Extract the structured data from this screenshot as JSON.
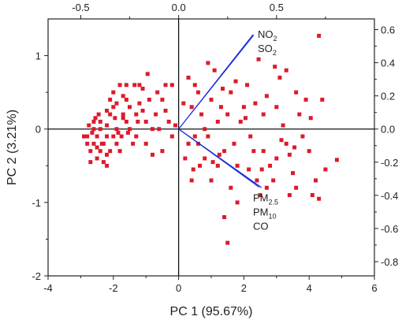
{
  "chart_data": {
    "type": "scatter",
    "title": "",
    "xlabel": "PC 1 (95.67%)",
    "ylabel": "PC 2 (3.21%)",
    "xlim": [
      -4,
      6
    ],
    "ylim": [
      -2,
      1.5
    ],
    "x_ticks": [
      -4,
      -2,
      0,
      2,
      4,
      6
    ],
    "y_ticks": [
      -2,
      -1,
      0,
      1
    ],
    "top_axis": {
      "lim": [
        -0.667,
        1.0
      ],
      "ticks": [
        -0.5,
        0.0,
        0.5
      ]
    },
    "right_axis": {
      "lim": [
        -0.8857,
        0.6643
      ],
      "ticks": [
        -0.8,
        -0.6,
        -0.4,
        -0.2,
        0.0,
        0.2,
        0.4,
        0.6
      ]
    },
    "grid": false,
    "zero_lines": true,
    "colors": {
      "points": "#dd1a2a",
      "loadings": "#1a2bd8",
      "axes": "#222222"
    },
    "loadings": [
      {
        "label": "NO",
        "sub": "2",
        "x": 0.38,
        "y": 0.57
      },
      {
        "label": "SO",
        "sub": "2",
        "x": 0.38,
        "y": 0.57
      },
      {
        "label": "PM",
        "sub": "2.5",
        "x": 0.42,
        "y": -0.35
      },
      {
        "label": "PM",
        "sub": "10",
        "x": 0.42,
        "y": -0.35
      },
      {
        "label": "CO",
        "sub": "",
        "x": 0.41,
        "y": -0.35
      }
    ],
    "points": [
      [
        -2.9,
        -0.1
      ],
      [
        -2.7,
        -0.3
      ],
      [
        -2.8,
        -0.1
      ],
      [
        -2.6,
        0.0
      ],
      [
        -2.7,
        -0.45
      ],
      [
        -2.5,
        -0.4
      ],
      [
        -2.6,
        -0.2
      ],
      [
        -2.5,
        -0.1
      ],
      [
        -2.4,
        0.1
      ],
      [
        -2.6,
        0.1
      ],
      [
        -2.4,
        -0.3
      ],
      [
        -2.3,
        -0.45
      ],
      [
        -2.2,
        -0.5
      ],
      [
        -2.3,
        -0.2
      ],
      [
        -2.2,
        -0.1
      ],
      [
        -2.4,
        0.0
      ],
      [
        -2.5,
        -0.25
      ],
      [
        -2.8,
        -0.2
      ],
      [
        -2.75,
        0.05
      ],
      [
        -2.2,
        0.05
      ],
      [
        -2.1,
        -0.3
      ],
      [
        -2.0,
        -0.1
      ],
      [
        -1.9,
        -0.2
      ],
      [
        -2.1,
        0.2
      ],
      [
        -2.0,
        0.3
      ],
      [
        -1.9,
        0.0
      ],
      [
        -1.8,
        -0.3
      ],
      [
        -2.2,
        -0.35
      ],
      [
        -2.35,
        -0.2
      ],
      [
        -2.45,
        0.2
      ],
      [
        -2.0,
        0.5
      ],
      [
        -1.8,
        0.6
      ],
      [
        -1.7,
        0.45
      ],
      [
        -1.6,
        0.4
      ],
      [
        -1.9,
        0.35
      ],
      [
        -2.1,
        0.4
      ],
      [
        -1.7,
        0.2
      ],
      [
        -1.6,
        0.1
      ],
      [
        -1.75,
        -0.1
      ],
      [
        -1.5,
        0.0
      ],
      [
        -1.4,
        -0.2
      ],
      [
        -1.5,
        0.3
      ],
      [
        -1.3,
        0.2
      ],
      [
        -1.6,
        0.6
      ],
      [
        -1.7,
        0.15
      ],
      [
        -2.2,
        0.25
      ],
      [
        -2.55,
        0.15
      ],
      [
        -2.65,
        -0.05
      ],
      [
        -1.85,
        -0.05
      ],
      [
        -1.95,
        0.15
      ],
      [
        -1.2,
        0.6
      ],
      [
        -1.1,
        0.55
      ],
      [
        -1.2,
        0.35
      ],
      [
        -1.0,
        0.1
      ],
      [
        -1.3,
        -0.1
      ],
      [
        -0.8,
        0.0
      ],
      [
        -1.0,
        -0.2
      ],
      [
        -0.9,
        0.4
      ],
      [
        -0.7,
        0.2
      ],
      [
        -0.5,
        0.4
      ],
      [
        -0.5,
        -0.3
      ],
      [
        -0.6,
        0.0
      ],
      [
        -0.4,
        0.25
      ],
      [
        -0.3,
        0.1
      ],
      [
        -0.2,
        -0.1
      ],
      [
        -0.1,
        0.05
      ],
      [
        -0.8,
        -0.35
      ],
      [
        -1.1,
        0.25
      ],
      [
        -0.4,
        0.6
      ],
      [
        -1.35,
        0.6
      ],
      [
        -1.55,
        -0.05
      ],
      [
        -0.95,
        0.75
      ],
      [
        -0.2,
        0.6
      ],
      [
        -1.25,
        0.1
      ],
      [
        -0.65,
        0.5
      ],
      [
        0.3,
        0.7
      ],
      [
        0.5,
        0.6
      ],
      [
        0.4,
        0.3
      ],
      [
        0.6,
        0.5
      ],
      [
        0.7,
        0.2
      ],
      [
        0.8,
        0.0
      ],
      [
        0.5,
        -0.1
      ],
      [
        0.3,
        -0.2
      ],
      [
        0.2,
        -0.4
      ],
      [
        0.4,
        -0.7
      ],
      [
        0.6,
        -0.2
      ],
      [
        0.9,
        -0.1
      ],
      [
        1.0,
        0.4
      ],
      [
        1.1,
        0.8
      ],
      [
        1.2,
        0.1
      ],
      [
        1.3,
        0.3
      ],
      [
        1.4,
        -0.3
      ],
      [
        1.2,
        -0.5
      ],
      [
        1.0,
        -0.7
      ],
      [
        0.8,
        -0.4
      ],
      [
        1.5,
        0.2
      ],
      [
        1.6,
        0.5
      ],
      [
        1.7,
        -0.2
      ],
      [
        1.8,
        -0.5
      ],
      [
        1.6,
        -0.8
      ],
      [
        1.4,
        -1.2
      ],
      [
        1.5,
        -1.55
      ],
      [
        1.9,
        0.1
      ],
      [
        2.0,
        0.3
      ],
      [
        2.1,
        0.6
      ],
      [
        2.2,
        -0.1
      ],
      [
        2.3,
        -0.3
      ],
      [
        2.4,
        -0.7
      ],
      [
        2.5,
        -0.9
      ],
      [
        2.6,
        0.2
      ],
      [
        2.7,
        0.45
      ],
      [
        2.8,
        -0.5
      ],
      [
        2.9,
        -0.7
      ],
      [
        2.7,
        -0.8
      ],
      [
        2.6,
        -0.3
      ],
      [
        3.0,
        0.3
      ],
      [
        3.1,
        0.7
      ],
      [
        3.2,
        0.05
      ],
      [
        3.3,
        -0.2
      ],
      [
        3.4,
        -0.35
      ],
      [
        3.5,
        -0.6
      ],
      [
        3.6,
        -0.8
      ],
      [
        3.3,
        0.8
      ],
      [
        3.0,
        -0.4
      ],
      [
        3.7,
        0.2
      ],
      [
        3.8,
        -0.1
      ],
      [
        3.9,
        0.4
      ],
      [
        4.0,
        -0.3
      ],
      [
        4.1,
        -0.9
      ],
      [
        4.3,
        1.27
      ],
      [
        4.4,
        0.4
      ],
      [
        4.2,
        -0.7
      ],
      [
        4.3,
        -0.95
      ],
      [
        4.5,
        -0.55
      ],
      [
        4.85,
        -0.42
      ],
      [
        3.4,
        -0.9
      ],
      [
        1.8,
        -1.0
      ],
      [
        2.05,
        0.15
      ],
      [
        2.15,
        -0.55
      ],
      [
        3.6,
        0.5
      ],
      [
        0.9,
        0.9
      ],
      [
        2.95,
        0.85
      ],
      [
        1.25,
        -0.35
      ],
      [
        2.35,
        0.35
      ],
      [
        3.15,
        -0.15
      ],
      [
        0.15,
        0.35
      ],
      [
        0.45,
        -0.55
      ],
      [
        1.05,
        -0.45
      ],
      [
        1.35,
        0.55
      ],
      [
        2.55,
        -0.55
      ],
      [
        3.55,
        -0.25
      ],
      [
        4.05,
        0.15
      ],
      [
        2.45,
        0.95
      ],
      [
        1.75,
        0.65
      ],
      [
        0.65,
        -0.5
      ]
    ]
  }
}
